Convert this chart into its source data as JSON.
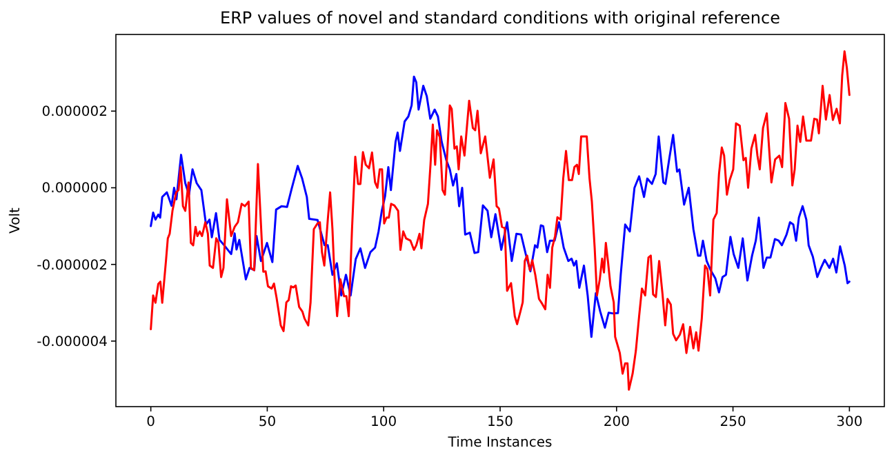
{
  "chart_data": {
    "type": "line",
    "title": "ERP values of novel and standard conditions with original reference",
    "xlabel": "Time Instances",
    "ylabel": "Volt",
    "xlim": [
      -15,
      315
    ],
    "ylim": [
      -5.71e-06,
      4e-06
    ],
    "xticks": [
      0,
      50,
      100,
      150,
      200,
      250,
      300
    ],
    "yticks": [
      {
        "value": -4e-06,
        "label": "-0.000004"
      },
      {
        "value": -2e-06,
        "label": "-0.000002"
      },
      {
        "value": 0,
        "label": "0.000000"
      },
      {
        "value": 2e-06,
        "label": "0.000002"
      }
    ],
    "grid": false,
    "series": [
      {
        "color": "#0000ff",
        "x": [
          0,
          1,
          2,
          3.2,
          4,
          4.9,
          6.9,
          8.9,
          10,
          11,
          13,
          14.8,
          16.4,
          17.9,
          19.7,
          21.7,
          23.7,
          25.2,
          26.2,
          28,
          29.5,
          31.5,
          34.5,
          36,
          36.8,
          38,
          40.8,
          42.4,
          44.4,
          45.4,
          47.3,
          49.9,
          52.2,
          53.8,
          56.2,
          58.5,
          60.5,
          63.1,
          65,
          67,
          68,
          71.6,
          74.6,
          76,
          78,
          79.9,
          81.8,
          83.8,
          85.8,
          88,
          90,
          92,
          94.3,
          96.3,
          97.8,
          99.2,
          100.6,
          102,
          103.1,
          105.1,
          106,
          107,
          109,
          110.6,
          112,
          113,
          114,
          115,
          117,
          118.5,
          120,
          121.9,
          123.3,
          124.9,
          126.9,
          128.4,
          129.8,
          131.2,
          132.4,
          133.7,
          135,
          137,
          139,
          140.6,
          142.6,
          144.6,
          146.2,
          148,
          150.5,
          153,
          155,
          157,
          159,
          161,
          163,
          165,
          166,
          167.5,
          168.5,
          170.2,
          171.4,
          173.4,
          175.3,
          177.3,
          179.3,
          180.7,
          181.7,
          182.7,
          184,
          186,
          187.6,
          189.2,
          191.1,
          193,
          195,
          196.6,
          198.6,
          200.6,
          201.8,
          203.7,
          205.7,
          207.7,
          209.7,
          211.8,
          213.2,
          215.2,
          216.8,
          218.1,
          220.1,
          221,
          222.7,
          224.3,
          226,
          227,
          229,
          231,
          233,
          235,
          236,
          237.1,
          238.7,
          240.4,
          242.4,
          244,
          245.5,
          247,
          248.9,
          250.3,
          252.3,
          254.2,
          256.2,
          258.2,
          259.8,
          261.1,
          263.1,
          264.5,
          266.1,
          268,
          269.6,
          271,
          273,
          274.5,
          275.9,
          277.1,
          278.3,
          279.9,
          281.5,
          282.5,
          284.3,
          286.2,
          287.8,
          289.4,
          291.4,
          293,
          294.4,
          296,
          298,
          299.2,
          300
        ],
        "values": [
          -1e-06,
          -6.5e-07,
          -8.3e-07,
          -7e-07,
          -7.8e-07,
          -2.4e-07,
          -1.2e-07,
          -4.7e-07,
          0,
          -3e-07,
          8.6e-07,
          1.2e-07,
          -1.8e-07,
          4.8e-07,
          1.2e-07,
          -6e-08,
          -9.6e-07,
          -8.3e-07,
          -1.29e-06,
          -6.6e-07,
          -1.36e-06,
          -1.5e-06,
          -1.73e-06,
          -1.19e-06,
          -1.61e-06,
          -1.36e-06,
          -2.39e-06,
          -2.09e-06,
          -2.15e-06,
          -1.26e-06,
          -1.91e-06,
          -1.44e-06,
          -1.94e-06,
          -5.7e-07,
          -4.8e-07,
          -5e-07,
          -2e-08,
          5.7e-07,
          2.4e-07,
          -2.4e-07,
          -8.1e-07,
          -8.4e-07,
          -1.5e-06,
          -1.5e-06,
          -2.27e-06,
          -1.97e-06,
          -2.81e-06,
          -2.27e-06,
          -2.81e-06,
          -1.86e-06,
          -1.58e-06,
          -2.09e-06,
          -1.68e-06,
          -1.56e-06,
          -1.14e-06,
          -6e-07,
          -2.2e-07,
          5.4e-07,
          -6e-08,
          1.2e-06,
          1.44e-06,
          9.6e-07,
          1.73e-06,
          1.86e-06,
          2.15e-06,
          2.9e-06,
          2.75e-06,
          2.04e-06,
          2.66e-06,
          2.39e-06,
          1.8e-06,
          2.04e-06,
          1.86e-06,
          1.2e-06,
          7.2e-07,
          4.8e-07,
          6e-08,
          3.6e-07,
          -4.8e-07,
          0,
          -1.22e-06,
          -1.17e-06,
          -1.7e-06,
          -1.68e-06,
          -4.6e-07,
          -6e-07,
          -1.29e-06,
          -6.9e-07,
          -1.62e-06,
          -9e-07,
          -1.91e-06,
          -1.2e-06,
          -1.22e-06,
          -1.73e-06,
          -2.18e-06,
          -1.5e-06,
          -1.56e-06,
          -9.8e-07,
          -1e-06,
          -1.68e-06,
          -1.38e-06,
          -1.38e-06,
          -9e-07,
          -1.56e-06,
          -1.91e-06,
          -1.85e-06,
          -2.03e-06,
          -1.91e-06,
          -2.61e-06,
          -2.03e-06,
          -2.81e-06,
          -3.89e-06,
          -2.75e-06,
          -3.23e-06,
          -3.65e-06,
          -3.26e-06,
          -3.28e-06,
          -3.27e-06,
          -2.27e-06,
          -9.6e-07,
          -1.14e-06,
          0,
          3e-07,
          -2.4e-07,
          2.4e-07,
          1e-07,
          3.6e-07,
          1.34e-06,
          1.4e-07,
          1e-07,
          7.8e-07,
          1.38e-06,
          4.2e-07,
          4.8e-07,
          -4.4e-07,
          0,
          -1.08e-06,
          -1.77e-06,
          -1.77e-06,
          -1.38e-06,
          -1.91e-06,
          -2.15e-06,
          -2.36e-06,
          -2.73e-06,
          -2.33e-06,
          -2.27e-06,
          -1.28e-06,
          -1.73e-06,
          -2.09e-06,
          -1.32e-06,
          -2.42e-06,
          -1.77e-06,
          -1.38e-06,
          -7.8e-07,
          -2.09e-06,
          -1.82e-06,
          -1.82e-06,
          -1.34e-06,
          -1.38e-06,
          -1.5e-06,
          -1.22e-06,
          -9e-07,
          -9.6e-07,
          -1.38e-06,
          -7.8e-07,
          -4.8e-07,
          -8.3e-07,
          -1.5e-06,
          -1.8e-06,
          -2.33e-06,
          -2.09e-06,
          -1.88e-06,
          -2.09e-06,
          -1.85e-06,
          -2.21e-06,
          -1.53e-06,
          -2.03e-06,
          -2.49e-06,
          -2.45e-06
        ]
      },
      {
        "color": "#ff0000",
        "x": [
          0,
          1,
          2,
          3.2,
          4.1,
          4.9,
          6.5,
          7.3,
          8.1,
          9.3,
          10.9,
          11.9,
          12.8,
          13.8,
          14.8,
          16.2,
          17.2,
          18.2,
          19.2,
          20,
          21,
          22,
          23.4,
          24.5,
          25.3,
          26.7,
          28.1,
          29,
          30.2,
          31.2,
          32.7,
          34.5,
          36,
          37.4,
          39,
          40.4,
          42,
          43,
          44.4,
          46,
          47.3,
          48.3,
          49.3,
          50.3,
          51.9,
          52.9,
          54,
          55.8,
          57,
          58.2,
          59.2,
          60.2,
          61.2,
          62.2,
          63.7,
          65.1,
          66,
          67.6,
          68.6,
          70,
          71.6,
          72.6,
          73.5,
          74.5,
          76,
          77,
          78,
          79,
          80,
          81.4,
          83,
          84,
          85,
          86.4,
          87.8,
          89,
          90,
          91.1,
          92.3,
          93.7,
          95,
          96.3,
          97.3,
          98.3,
          99.3,
          100.2,
          101.2,
          102.2,
          103.2,
          104.6,
          106.2,
          107.2,
          108.4,
          109.6,
          111.5,
          113,
          114,
          115.4,
          116.2,
          117.4,
          119,
          120.1,
          121.1,
          122.1,
          122.9,
          124.1,
          125.3,
          126.3,
          127.3,
          128.4,
          129.2,
          130.4,
          131.4,
          132.2,
          133.3,
          134.7,
          136.7,
          138.3,
          139.3,
          140.3,
          141.7,
          143.6,
          145.6,
          147.2,
          148.5,
          149.5,
          150.8,
          152,
          153,
          154.7,
          156.3,
          157.3,
          158.7,
          159.7,
          160.6,
          161.6,
          162.8,
          163.8,
          165.1,
          166.7,
          168,
          169.4,
          170.4,
          171.4,
          172.4,
          173.6,
          174.6,
          176,
          177.1,
          178.3,
          179.5,
          180.9,
          181.9,
          183,
          183.8,
          184.8,
          185.8,
          187.2,
          188.4,
          189.4,
          190.6,
          191.6,
          192.8,
          193.8,
          194.6,
          195.4,
          196.4,
          197.4,
          198.8,
          199.4,
          201.4,
          202.6,
          203.7,
          204.7,
          205.3,
          206.9,
          208.3,
          209.7,
          210.9,
          212.3,
          213.7,
          214.7,
          215.7,
          216.9,
          218.3,
          219.7,
          220.9,
          221.9,
          223.3,
          224.3,
          225.6,
          227.2,
          228.6,
          230,
          231.6,
          233,
          234.2,
          235.2,
          236.6,
          238,
          239,
          240.2,
          241.6,
          243,
          244,
          245.2,
          246.2,
          247.4,
          248.6,
          250.1,
          251.3,
          252.9,
          254.5,
          255.5,
          256.5,
          257.9,
          259.5,
          260.5,
          261.5,
          262.9,
          264.5,
          266.5,
          268.1,
          269.9,
          271.1,
          272.5,
          274.1,
          275.5,
          276.5,
          277.7,
          278.9,
          280.1,
          281.5,
          283.5,
          284.9,
          286.1,
          286.9,
          288.5,
          289.9,
          291.5,
          292.9,
          294.5,
          295.9,
          296.9,
          297.9,
          298.9,
          300
        ],
        "values": [
          -3.69e-06,
          -2.81e-06,
          -3e-06,
          -2.51e-06,
          -2.45e-06,
          -3e-06,
          -1.91e-06,
          -1.32e-06,
          -1.2e-06,
          -6e-07,
          -1.2e-07,
          -6e-08,
          5.4e-07,
          -4.8e-07,
          -6e-07,
          1.4e-07,
          -1.44e-06,
          -1.5e-06,
          -1.02e-06,
          -1.26e-06,
          -1.14e-06,
          -1.26e-06,
          -9e-07,
          -1.2e-06,
          -2.03e-06,
          -2.09e-06,
          -1.32e-06,
          -1.42e-06,
          -2.33e-06,
          -2.09e-06,
          -3e-07,
          -1.26e-06,
          -1.02e-06,
          -9e-07,
          -4.2e-07,
          -4.8e-07,
          -3.6e-07,
          -2.09e-06,
          -2.15e-06,
          6.2e-07,
          -9.6e-07,
          -2.19e-06,
          -2.18e-06,
          -2.57e-06,
          -2.63e-06,
          -2.5e-06,
          -2.87e-06,
          -3.59e-06,
          -3.74e-06,
          -2.99e-06,
          -2.93e-06,
          -2.57e-06,
          -2.6e-06,
          -2.55e-06,
          -3.11e-06,
          -3.23e-06,
          -3.41e-06,
          -3.59e-06,
          -2.99e-06,
          -1.08e-06,
          -9.3e-07,
          -9e-07,
          -1.68e-06,
          -2.03e-06,
          -8.3e-07,
          -1.2e-07,
          -1.08e-06,
          -2.51e-06,
          -3.35e-06,
          -2.39e-06,
          -2.83e-06,
          -2.83e-06,
          -3.35e-06,
          -1.08e-06,
          8.1e-07,
          1e-07,
          1e-07,
          9.3e-07,
          6e-07,
          5.1e-07,
          9.2e-07,
          1.4e-07,
          0,
          4.8e-07,
          4.8e-07,
          -9.3e-07,
          -7.8e-07,
          -7.8e-07,
          -4.2e-07,
          -4.6e-07,
          -6e-07,
          -1.62e-06,
          -1.14e-06,
          -1.32e-06,
          -1.38e-06,
          -1.62e-06,
          -1.5e-06,
          -1.2e-06,
          -1.58e-06,
          -8.4e-07,
          -4.2e-07,
          6e-07,
          1.65e-06,
          6e-07,
          1.5e-06,
          1.32e-06,
          -6e-08,
          -1.8e-07,
          9e-07,
          2.15e-06,
          2.06e-06,
          1.02e-06,
          1.08e-06,
          4.8e-07,
          1.34e-06,
          8.4e-07,
          2.27e-06,
          1.56e-06,
          1.5e-06,
          2.01e-06,
          9e-07,
          1.34e-06,
          2.6e-07,
          7.4e-07,
          -4.8e-07,
          -5.4e-07,
          -1.02e-06,
          -1.05e-06,
          -2.69e-06,
          -2.49e-06,
          -3.35e-06,
          -3.56e-06,
          -3.23e-06,
          -2.99e-06,
          -1.91e-06,
          -1.77e-06,
          -2.15e-06,
          -1.89e-06,
          -2.27e-06,
          -2.9e-06,
          -3.02e-06,
          -3.17e-06,
          -2.27e-06,
          -2.61e-06,
          -1.56e-06,
          -1.26e-06,
          -7.7e-07,
          -8.3e-07,
          2.4e-07,
          9.6e-07,
          2e-07,
          2e-07,
          5.4e-07,
          6e-07,
          3.6e-07,
          1.34e-06,
          1.34e-06,
          1.34e-06,
          2.4e-07,
          -3.6e-07,
          -1.56e-06,
          -2.81e-06,
          -2.39e-06,
          -1.85e-06,
          -2.21e-06,
          -1.44e-06,
          -1.97e-06,
          -2.57e-06,
          -2.99e-06,
          -3.89e-06,
          -4.31e-06,
          -4.85e-06,
          -4.58e-06,
          -4.58e-06,
          -5.27e-06,
          -4.85e-06,
          -4.25e-06,
          -3.35e-06,
          -2.63e-06,
          -2.81e-06,
          -1.82e-06,
          -1.77e-06,
          -2.78e-06,
          -2.85e-06,
          -1.91e-06,
          -2.75e-06,
          -3.59e-06,
          -2.9e-06,
          -3.05e-06,
          -3.81e-06,
          -3.98e-06,
          -3.83e-06,
          -3.56e-06,
          -4.31e-06,
          -3.63e-06,
          -4.19e-06,
          -3.77e-06,
          -4.25e-06,
          -3.41e-06,
          -2.03e-06,
          -2.12e-06,
          -2.81e-06,
          -8.3e-07,
          -6.6e-07,
          3.6e-07,
          1.05e-06,
          8.4e-07,
          -1.8e-07,
          2e-07,
          4.8e-07,
          1.68e-06,
          1.62e-06,
          7.2e-07,
          7.8e-07,
          0,
          1.02e-06,
          1.38e-06,
          8.4e-07,
          4.8e-07,
          1.56e-06,
          1.94e-06,
          1.4e-07,
          7.4e-07,
          8.4e-07,
          5.4e-07,
          2.21e-06,
          1.8e-06,
          6e-08,
          4.8e-07,
          1.62e-06,
          1.2e-06,
          1.86e-06,
          1.23e-06,
          1.23e-06,
          1.8e-06,
          1.78e-06,
          1.42e-06,
          2.66e-06,
          1.78e-06,
          2.42e-06,
          1.77e-06,
          2.06e-06,
          1.68e-06,
          2.93e-06,
          3.56e-06,
          3.13e-06,
          2.42e-06
        ]
      }
    ]
  }
}
